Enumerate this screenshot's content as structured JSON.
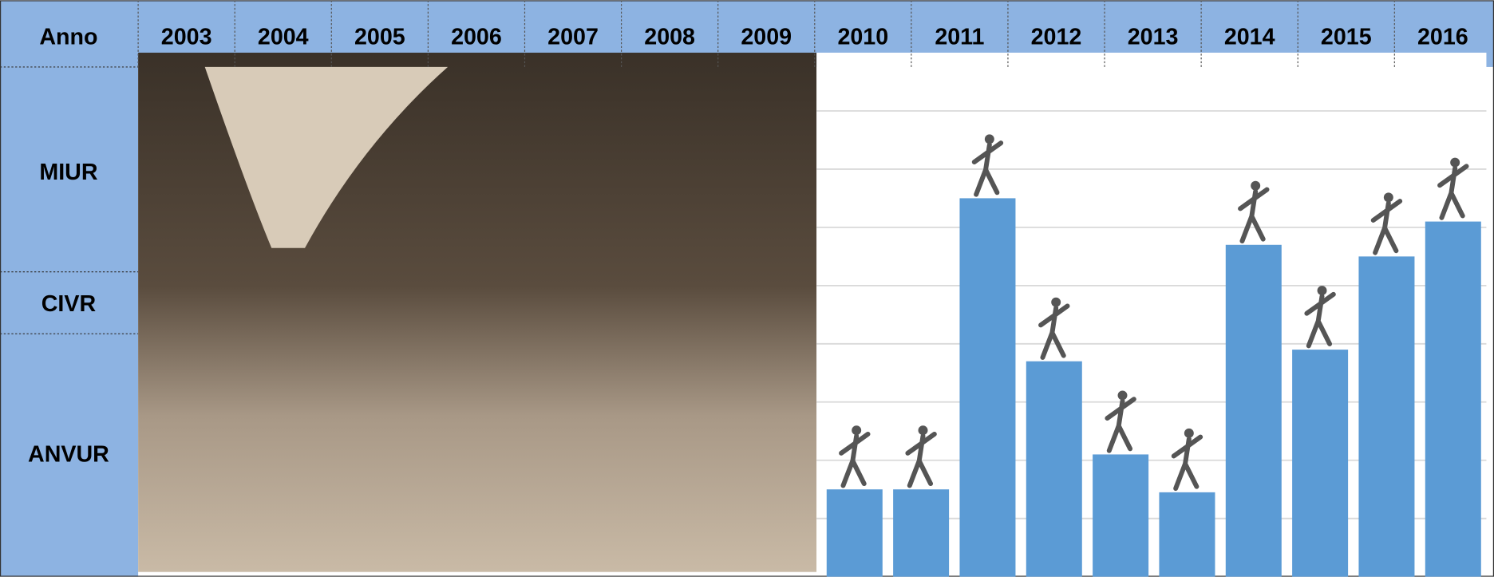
{
  "header": {
    "title": "Anno",
    "years": [
      "2003",
      "2004",
      "2005",
      "2006",
      "2007",
      "2008",
      "2009",
      "2010",
      "2011",
      "2012",
      "2013",
      "2014",
      "2015",
      "2016"
    ]
  },
  "rows": [
    "MIUR",
    "CIVR",
    "ANVUR"
  ],
  "chart_data": {
    "type": "bar",
    "values": [
      1.5,
      1.5,
      6.5,
      3.7,
      2.1,
      1.45,
      5.7,
      3.9,
      5.5,
      6.1
    ],
    "color": "#5b9bd5",
    "ylim": [
      0,
      9
    ],
    "yticks": [
      1,
      2,
      3,
      4,
      5,
      6,
      7,
      8
    ],
    "grid": true
  }
}
